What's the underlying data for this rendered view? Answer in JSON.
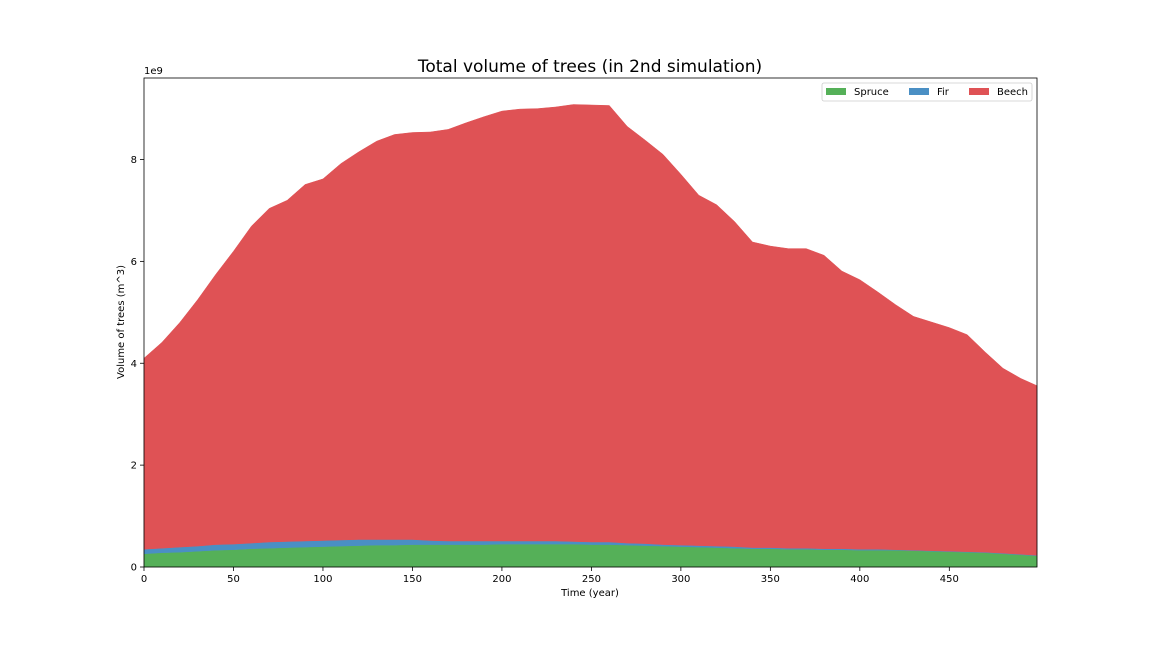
{
  "chart_data": {
    "type": "area",
    "stacked": true,
    "title": "Total volume of trees (in 2nd simulation)",
    "xlabel": "Time (year)",
    "ylabel": "Volume of trees (m^3)",
    "offset_label": "1e9",
    "xlim": [
      0,
      499
    ],
    "ylim": [
      0,
      9.6
    ],
    "x_ticks": [
      0,
      50,
      100,
      150,
      200,
      250,
      300,
      350,
      400,
      450
    ],
    "y_ticks": [
      0,
      2,
      4,
      6,
      8
    ],
    "grid": false,
    "legend": {
      "position": "top-right",
      "columns": 3
    },
    "x": [
      0,
      10,
      20,
      30,
      40,
      50,
      60,
      70,
      80,
      90,
      100,
      110,
      120,
      130,
      140,
      150,
      160,
      170,
      180,
      190,
      200,
      210,
      220,
      230,
      240,
      250,
      260,
      270,
      280,
      290,
      300,
      310,
      320,
      330,
      340,
      350,
      360,
      370,
      380,
      390,
      400,
      410,
      420,
      430,
      440,
      450,
      460,
      470,
      480,
      490,
      499
    ],
    "series": [
      {
        "name": "Spruce",
        "color": "#55b058",
        "values": [
          0.26,
          0.28,
          0.29,
          0.31,
          0.33,
          0.34,
          0.36,
          0.37,
          0.38,
          0.39,
          0.4,
          0.41,
          0.42,
          0.43,
          0.43,
          0.44,
          0.44,
          0.44,
          0.44,
          0.44,
          0.45,
          0.45,
          0.45,
          0.45,
          0.45,
          0.44,
          0.44,
          0.43,
          0.42,
          0.41,
          0.4,
          0.39,
          0.38,
          0.37,
          0.36,
          0.36,
          0.35,
          0.35,
          0.34,
          0.34,
          0.33,
          0.33,
          0.33,
          0.32,
          0.31,
          0.3,
          0.29,
          0.28,
          0.26,
          0.24,
          0.22
        ]
      },
      {
        "name": "Fir",
        "color": "#4a8fc4",
        "values": [
          0.09,
          0.09,
          0.1,
          0.1,
          0.11,
          0.11,
          0.11,
          0.12,
          0.12,
          0.12,
          0.12,
          0.12,
          0.12,
          0.11,
          0.11,
          0.1,
          0.08,
          0.07,
          0.07,
          0.07,
          0.06,
          0.06,
          0.06,
          0.06,
          0.05,
          0.05,
          0.05,
          0.04,
          0.04,
          0.03,
          0.03,
          0.03,
          0.03,
          0.03,
          0.02,
          0.02,
          0.02,
          0.02,
          0.02,
          0.02,
          0.02,
          0.02,
          0.01,
          0.01,
          0.01,
          0.01,
          0.01,
          0.01,
          0.01,
          0.01,
          0.01
        ]
      },
      {
        "name": "Beech",
        "color": "#df5255",
        "values": [
          3.75,
          4.04,
          4.41,
          4.84,
          5.3,
          5.75,
          6.22,
          6.55,
          6.7,
          7.0,
          7.1,
          7.39,
          7.61,
          7.82,
          7.95,
          7.99,
          8.02,
          8.08,
          8.21,
          8.33,
          8.44,
          8.48,
          8.49,
          8.52,
          8.58,
          8.58,
          8.57,
          8.18,
          7.92,
          7.66,
          7.28,
          6.88,
          6.7,
          6.38,
          6.0,
          5.92,
          5.88,
          5.88,
          5.76,
          5.45,
          5.29,
          5.05,
          4.81,
          4.59,
          4.49,
          4.39,
          4.26,
          3.93,
          3.63,
          3.45,
          3.33
        ]
      }
    ]
  }
}
